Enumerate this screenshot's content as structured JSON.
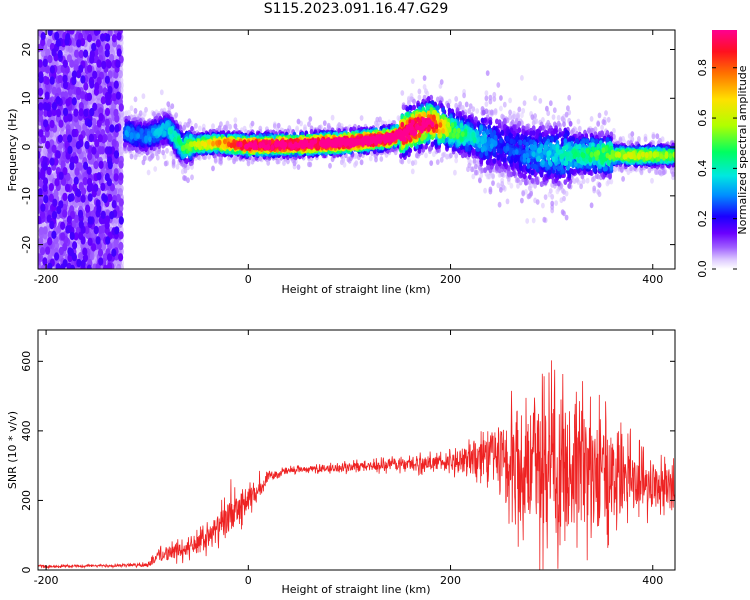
{
  "title": "S115.2023.091.16.47.G29",
  "colors": {
    "snr_line": "#ee2222",
    "colorscale": [
      "#ffffff",
      "#dcc8ff",
      "#a060ff",
      "#6a00ff",
      "#1a00ff",
      "#0090ff",
      "#00e8e0",
      "#00ff60",
      "#b0ff00",
      "#ffe000",
      "#ff7000",
      "#ff1020",
      "#ff0090"
    ]
  },
  "chart_data": [
    {
      "id": "spectrogram",
      "type": "heatmap",
      "title": "S115.2023.091.16.47.G29",
      "xlabel": "Height of straight line (km)",
      "ylabel": "Frequency (Hz)",
      "xlim": [
        -208,
        422
      ],
      "ylim": [
        -25,
        24
      ],
      "xticks": [
        -200,
        0,
        200,
        400
      ],
      "xtick_labels": [
        "-200",
        "0",
        "200",
        "400"
      ],
      "yticks": [
        -20,
        -10,
        0,
        10,
        20
      ],
      "ytick_labels": [
        "-20",
        "-10",
        "0",
        "10",
        "20"
      ],
      "colorbar": {
        "label": "Normalized spectral amplitude",
        "range": [
          0,
          0.95
        ],
        "ticks": [
          0.0,
          0.2,
          0.4,
          0.6,
          0.8
        ],
        "tick_labels": [
          "0.0",
          "0.2",
          "0.4",
          "0.6",
          "0.8"
        ]
      },
      "ridge": {
        "x": [
          -122,
          -100,
          -80,
          -65,
          -50,
          -30,
          0,
          50,
          100,
          140,
          160,
          180,
          200,
          230,
          250,
          275,
          300,
          340,
          380,
          420
        ],
        "freq": [
          3,
          2,
          4,
          0,
          0.5,
          0.8,
          0.3,
          0.5,
          1.0,
          1.8,
          3.5,
          5.0,
          3.5,
          1.5,
          0.5,
          -1.5,
          -1.5,
          -1.5,
          -1.8,
          -1.7
        ],
        "amplitude": [
          0.25,
          0.25,
          0.3,
          0.4,
          0.5,
          0.6,
          0.8,
          0.85,
          0.9,
          0.9,
          0.9,
          0.8,
          0.45,
          0.3,
          0.2,
          0.25,
          0.3,
          0.4,
          0.5,
          0.45
        ]
      },
      "noise_region": {
        "x_range": [
          -208,
          -125
        ],
        "freq_range": [
          -25,
          24
        ],
        "amplitude": 0.1
      }
    },
    {
      "id": "snr",
      "type": "line",
      "xlabel": "Height of straight line (km)",
      "ylabel": "SNR (10 * v/v)",
      "xlim": [
        -208,
        422
      ],
      "ylim": [
        0,
        690
      ],
      "xticks": [
        -200,
        0,
        200,
        400
      ],
      "xtick_labels": [
        "-200",
        "0",
        "200",
        "400"
      ],
      "yticks": [
        0,
        200,
        400,
        600
      ],
      "ytick_labels": [
        "0",
        "200",
        "400",
        "600"
      ],
      "envelope": {
        "x": [
          -208,
          -150,
          -100,
          -90,
          -60,
          -40,
          -20,
          0,
          10,
          20,
          40,
          60,
          100,
          150,
          200,
          240,
          260,
          280,
          300,
          320,
          340,
          360,
          380,
          400,
          422
        ],
        "mean": [
          10,
          12,
          15,
          40,
          60,
          90,
          150,
          200,
          230,
          270,
          285,
          290,
          295,
          305,
          310,
          330,
          300,
          300,
          300,
          290,
          280,
          270,
          260,
          240,
          230
        ],
        "spread": [
          5,
          5,
          8,
          30,
          40,
          55,
          80,
          60,
          30,
          20,
          15,
          12,
          20,
          30,
          40,
          120,
          220,
          290,
          320,
          300,
          260,
          200,
          150,
          110,
          90
        ]
      }
    }
  ]
}
